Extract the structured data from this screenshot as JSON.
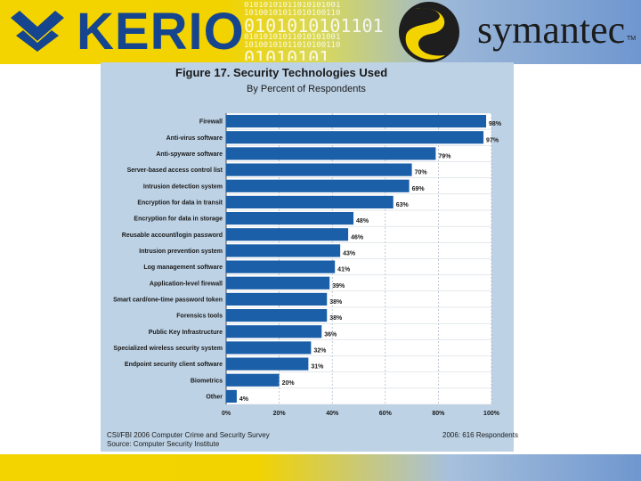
{
  "header": {
    "kerio_text": "KERIO",
    "symantec_text": "symantec",
    "tm_text": "TM",
    "binary_lines": [
      "01010101011010101001",
      "10100101011010100110",
      "0101010101101",
      "01010101011010101001",
      "10100101011010100110",
      "01010101"
    ],
    "colors": {
      "yellow": "#f4d400",
      "blue": "#6f97cf",
      "kerio_blue": "#16458f"
    }
  },
  "figure": {
    "title": "Figure 17. Security Technologies Used",
    "subtitle": "By Percent of Respondents",
    "footer_source_line1": "CSI/FBI 2006 Computer Crime and Security Survey",
    "footer_source_line2": "Source: Computer Security Institute",
    "footer_respondents": "2006: 616 Respondents",
    "colors": {
      "panel_bg": "#bdd2e5",
      "plot_bg": "#ffffff",
      "bar": "#1b5fa8"
    }
  },
  "chart_data": {
    "type": "bar",
    "orientation": "horizontal",
    "title": "Figure 17. Security Technologies Used",
    "subtitle": "By Percent of Respondents",
    "categories": [
      "Firewall",
      "Anti-virus software",
      "Anti-spyware software",
      "Server-based access control list",
      "Intrusion detection system",
      "Encryption for data in transit",
      "Encryption for data in storage",
      "Reusable account/login password",
      "Intrusion prevention system",
      "Log management software",
      "Application-level firewall",
      "Smart card/one-time password token",
      "Forensics tools",
      "Public Key Infrastructure",
      "Specialized wireless security system",
      "Endpoint security client software",
      "Biometrics",
      "Other"
    ],
    "values": [
      98,
      97,
      79,
      70,
      69,
      63,
      48,
      46,
      43,
      41,
      39,
      38,
      38,
      36,
      32,
      31,
      20,
      4
    ],
    "value_labels": [
      "98%",
      "97%",
      "79%",
      "70%",
      "69%",
      "63%",
      "48%",
      "46%",
      "43%",
      "41%",
      "39%",
      "38%",
      "38%",
      "36%",
      "32%",
      "31%",
      "20%",
      "4%"
    ],
    "xlim": [
      0,
      100
    ],
    "xticks": [
      "0%",
      "20%",
      "40%",
      "60%",
      "80%",
      "100%"
    ],
    "xlabel": "",
    "ylabel": "",
    "grid": true,
    "legend": false
  }
}
